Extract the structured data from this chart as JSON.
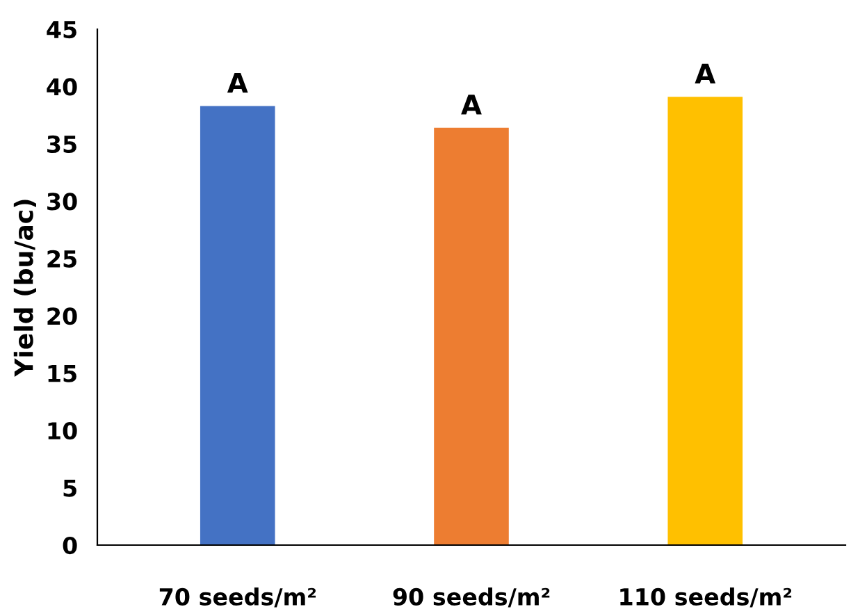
{
  "chart_data": {
    "type": "bar",
    "ylabel": "Yield (bu/ac)",
    "categories": [
      "70 seeds/m²",
      "90 seeds/m²",
      "110 seeds/m²"
    ],
    "values": [
      38.3,
      36.4,
      39.1
    ],
    "colors": [
      "#4472c4",
      "#ed7d31",
      "#ffc000"
    ],
    "ylim": [
      0,
      45
    ],
    "yticks": [
      0,
      5,
      10,
      15,
      20,
      25,
      30,
      35,
      40,
      45
    ],
    "grid": false,
    "legend": false,
    "annotations": [
      {
        "text": "A",
        "x": "70 seeds/m²",
        "y": 38.3
      },
      {
        "text": "A",
        "x": "90 seeds/m²",
        "y": 36.4
      },
      {
        "text": "A",
        "x": "110 seeds/m²",
        "y": 39.1
      }
    ]
  }
}
